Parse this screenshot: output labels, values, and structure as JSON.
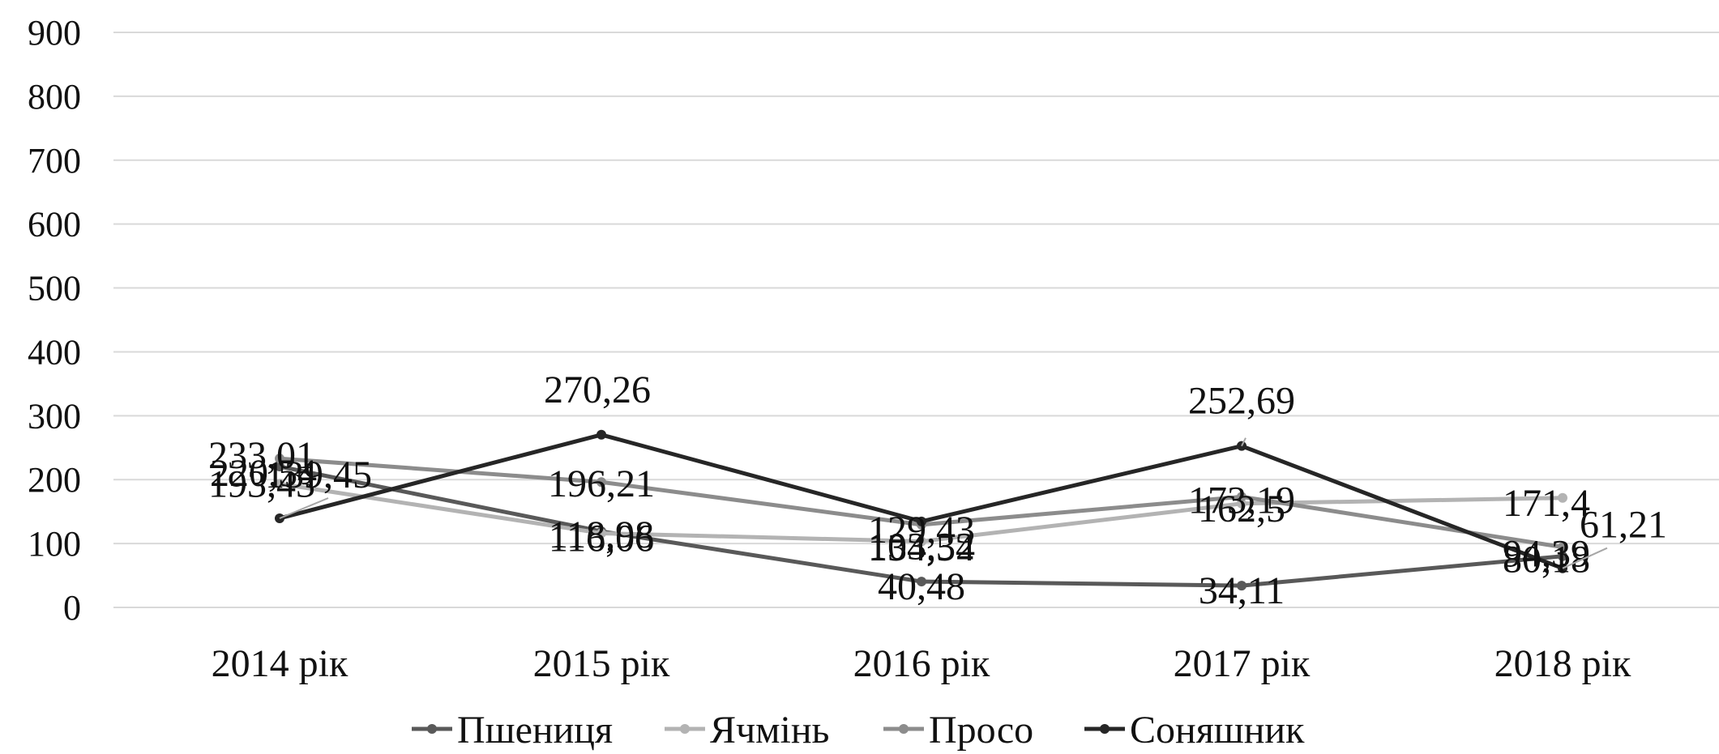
{
  "chart_data": {
    "type": "line",
    "title": "",
    "xlabel": "",
    "ylabel": "",
    "categories": [
      "2014 рік",
      "2015 рік",
      "2016 рік",
      "2017 рік",
      "2018 рік"
    ],
    "ylim": [
      0,
      900
    ],
    "yticks": [
      "0",
      "100",
      "200",
      "300",
      "400",
      "500",
      "600",
      "700",
      "800",
      "900"
    ],
    "grid": true,
    "legend_position": "bottom",
    "series": [
      {
        "name": "Пшениця",
        "color": "#595959",
        "values": [
          220.54,
          118.98,
          40.48,
          34.11,
          80.18
        ],
        "labels": [
          "220,54",
          "118,98",
          "40,48",
          "34,11",
          "80,18"
        ]
      },
      {
        "name": "Ячмінь",
        "color": "#b3b3b3",
        "values": [
          193.43,
          116.06,
          103.32,
          162.5,
          171.4
        ],
        "labels": [
          "193,43",
          "116,06",
          "103,32",
          "162,5",
          "171,4"
        ]
      },
      {
        "name": "Просо",
        "color": "#8c8c8c",
        "values": [
          233.01,
          196.21,
          129.43,
          173.19,
          94.39
        ],
        "labels": [
          "233,01",
          "196,21",
          "129,43",
          "173,19",
          "94,39"
        ]
      },
      {
        "name": "Соняшник",
        "color": "#262626",
        "values": [
          139.45,
          270.26,
          134.54,
          252.69,
          61.21
        ],
        "labels": [
          "139,45",
          "270,26",
          "134,54",
          "252,69",
          "61,21"
        ]
      }
    ]
  }
}
